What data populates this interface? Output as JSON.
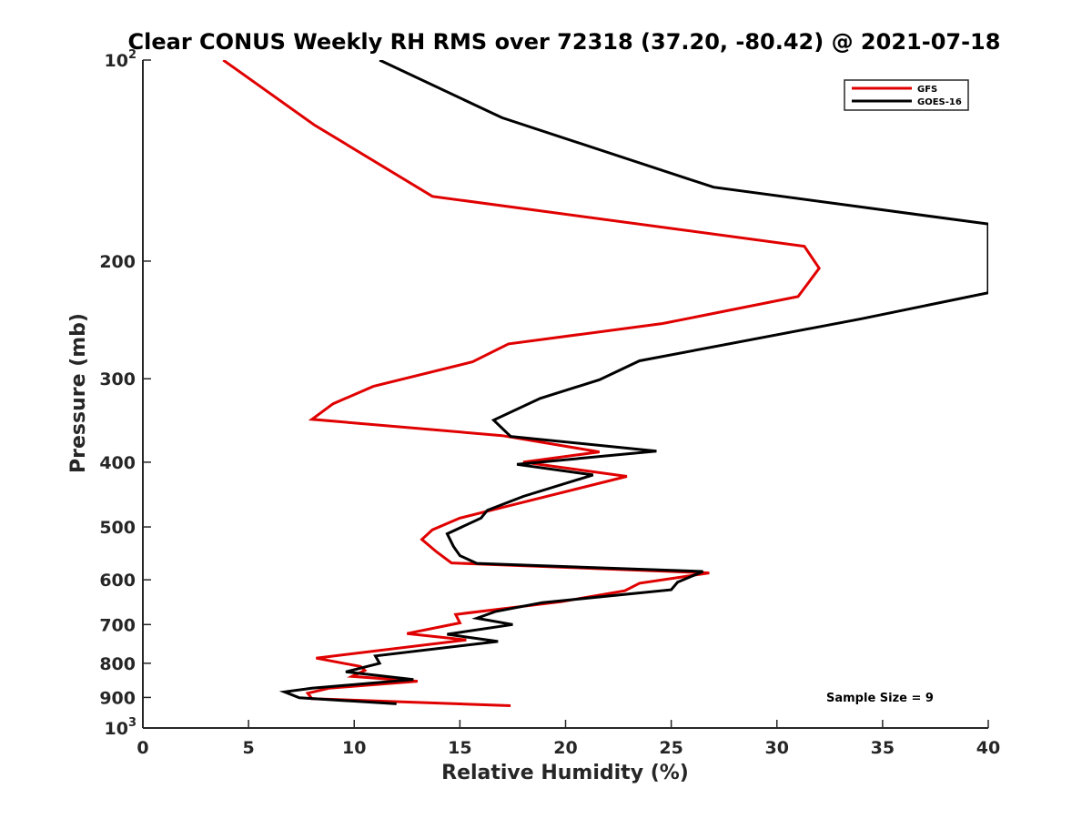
{
  "chart_data": {
    "type": "line",
    "title": "Clear CONUS Weekly RH RMS over 72318 (37.20, -80.42) @ 2021-07-18",
    "xlabel": "Relative Humidity (%)",
    "ylabel": "Pressure (mb)",
    "xlim": [
      0,
      40
    ],
    "ylim": [
      100,
      1000
    ],
    "yscale": "log",
    "y_reversed": true,
    "grid": false,
    "legend_position": "top-right",
    "x_ticks": [
      0,
      5,
      10,
      15,
      20,
      25,
      30,
      35,
      40
    ],
    "x_tick_labels": [
      "0",
      "5",
      "10",
      "15",
      "20",
      "25",
      "30",
      "35",
      "40"
    ],
    "y_ticks": [
      100,
      200,
      300,
      400,
      500,
      600,
      700,
      800,
      900,
      1000
    ],
    "y_tick_labels": [
      {
        "base": "10",
        "exp": "2"
      },
      {
        "base": "200",
        "exp": ""
      },
      {
        "base": "300",
        "exp": ""
      },
      {
        "base": "400",
        "exp": ""
      },
      {
        "base": "500",
        "exp": ""
      },
      {
        "base": "600",
        "exp": ""
      },
      {
        "base": "700",
        "exp": ""
      },
      {
        "base": "800",
        "exp": ""
      },
      {
        "base": "900",
        "exp": ""
      },
      {
        "base": "10",
        "exp": "3"
      }
    ],
    "annotation": "Sample Size = 9",
    "series": [
      {
        "name": "GFS",
        "color": "#e00000",
        "points": [
          [
            3.8,
            100
          ],
          [
            8.1,
            125
          ],
          [
            13.7,
            160
          ],
          [
            31.3,
            190
          ],
          [
            32.0,
            205
          ],
          [
            31.0,
            226
          ],
          [
            24.6,
            248
          ],
          [
            17.3,
            266
          ],
          [
            15.6,
            283
          ],
          [
            10.9,
            308
          ],
          [
            9.0,
            327
          ],
          [
            8.0,
            345
          ],
          [
            17.0,
            365
          ],
          [
            21.6,
            386
          ],
          [
            18.0,
            400
          ],
          [
            22.9,
            420
          ],
          [
            17.3,
            465
          ],
          [
            15.0,
            485
          ],
          [
            13.7,
            505
          ],
          [
            13.2,
            522
          ],
          [
            13.9,
            545
          ],
          [
            14.6,
            566
          ],
          [
            26.8,
            586
          ],
          [
            23.5,
            607
          ],
          [
            22.8,
            623
          ],
          [
            19.8,
            647
          ],
          [
            14.8,
            676
          ],
          [
            15.0,
            696
          ],
          [
            12.5,
            722
          ],
          [
            15.3,
            738
          ],
          [
            8.2,
            786
          ],
          [
            10.3,
            809
          ],
          [
            10.5,
            820
          ],
          [
            9.9,
            837
          ],
          [
            13.0,
            851
          ],
          [
            8.8,
            872
          ],
          [
            7.8,
            887
          ],
          [
            8.0,
            904
          ],
          [
            17.4,
            926
          ]
        ]
      },
      {
        "name": "GOES-16",
        "color": "#000000",
        "points": [
          [
            11.2,
            100
          ],
          [
            17.0,
            122
          ],
          [
            27.0,
            155
          ],
          [
            40.0,
            176
          ],
          [
            40.0,
            223
          ],
          [
            34.0,
            244
          ],
          [
            23.5,
            282
          ],
          [
            21.6,
            301
          ],
          [
            18.8,
            321
          ],
          [
            16.6,
            346
          ],
          [
            17.4,
            366
          ],
          [
            24.3,
            385
          ],
          [
            17.7,
            403
          ],
          [
            21.3,
            418
          ],
          [
            18.0,
            450
          ],
          [
            16.3,
            472
          ],
          [
            16.0,
            485
          ],
          [
            14.4,
            512
          ],
          [
            14.7,
            535
          ],
          [
            15.0,
            552
          ],
          [
            15.8,
            567
          ],
          [
            26.5,
            583
          ],
          [
            25.3,
            605
          ],
          [
            25.0,
            621
          ],
          [
            18.9,
            649
          ],
          [
            16.7,
            669
          ],
          [
            15.8,
            685
          ],
          [
            17.5,
            700
          ],
          [
            14.4,
            724
          ],
          [
            16.8,
            742
          ],
          [
            11.0,
            780
          ],
          [
            11.2,
            800
          ],
          [
            9.6,
            824
          ],
          [
            12.8,
            846
          ],
          [
            8.0,
            872
          ],
          [
            6.7,
            883
          ],
          [
            7.4,
            901
          ],
          [
            12.0,
            920
          ]
        ]
      }
    ]
  }
}
